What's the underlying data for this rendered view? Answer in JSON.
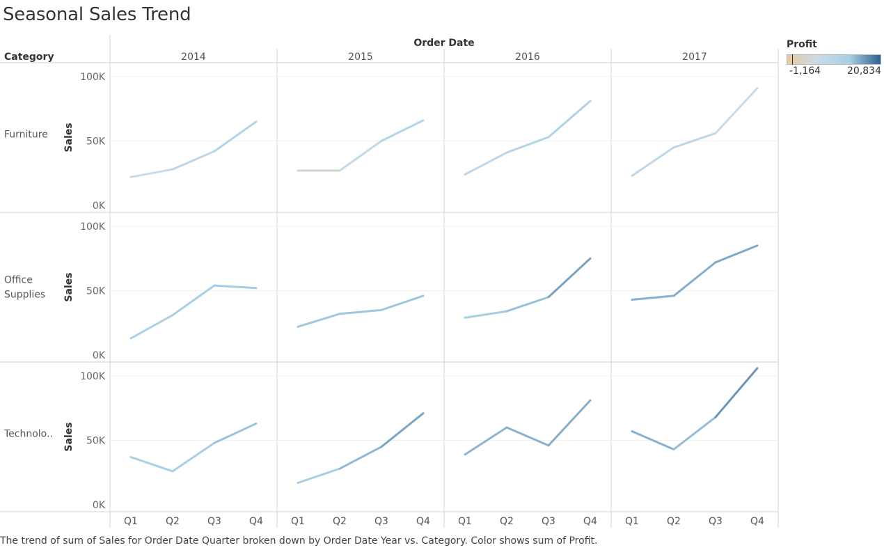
{
  "title": "Seasonal Sales Trend",
  "caption": "The trend of sum of Sales for Order Date Quarter broken down by Order Date Year vs. Category.  Color shows sum of Profit.",
  "legend": {
    "title": "Profit",
    "min_label": "-1,164",
    "max_label": "20,834",
    "min": -1164,
    "max": 20834,
    "colors": [
      "#e6c9a0",
      "#c9dce8",
      "#a8cfe4",
      "#2f5f8f"
    ]
  },
  "chart_data": {
    "type": "line",
    "column_header": "Order Date",
    "row_header": "Category",
    "columns": [
      "2014",
      "2015",
      "2016",
      "2017"
    ],
    "rows": [
      "Furniture",
      "Office Supplies",
      "Technolo.."
    ],
    "x_labels": [
      "Q1",
      "Q2",
      "Q3",
      "Q4"
    ],
    "ylabel": "Sales",
    "y_ticks": [
      0,
      50000,
      100000
    ],
    "y_tick_labels": [
      "0K",
      "50K",
      "100K"
    ],
    "ylim": [
      0,
      100000
    ],
    "grid": true,
    "series": [
      {
        "row": "Furniture",
        "year": "2014",
        "values": [
          22000,
          28000,
          42000,
          65000
        ],
        "profit": [
          -400,
          1200,
          3000,
          4000
        ]
      },
      {
        "row": "Furniture",
        "year": "2015",
        "values": [
          27000,
          27000,
          50000,
          66000
        ],
        "profit": [
          -1164,
          200,
          2000,
          4000
        ]
      },
      {
        "row": "Furniture",
        "year": "2016",
        "values": [
          24000,
          41000,
          53000,
          81000
        ],
        "profit": [
          1000,
          3000,
          3500,
          4500
        ]
      },
      {
        "row": "Furniture",
        "year": "2017",
        "values": [
          23000,
          45000,
          56000,
          91000
        ],
        "profit": [
          1000,
          2500,
          1500,
          -300
        ]
      },
      {
        "row": "Office Supplies",
        "year": "2014",
        "values": [
          13000,
          31000,
          54000,
          52000
        ],
        "profit": [
          4500,
          5000,
          5500,
          5500
        ]
      },
      {
        "row": "Office Supplies",
        "year": "2015",
        "values": [
          22000,
          32000,
          35000,
          46000
        ],
        "profit": [
          6000,
          6500,
          6500,
          6500
        ]
      },
      {
        "row": "Office Supplies",
        "year": "2016",
        "values": [
          29000,
          34000,
          45000,
          75000
        ],
        "profit": [
          5000,
          5500,
          9000,
          14000
        ]
      },
      {
        "row": "Office Supplies",
        "year": "2017",
        "values": [
          43000,
          46000,
          72000,
          85000
        ],
        "profit": [
          9000,
          9500,
          10500,
          10500
        ]
      },
      {
        "row": "Technolo..",
        "year": "2014",
        "values": [
          37000,
          26000,
          48000,
          63000
        ],
        "profit": [
          5000,
          4500,
          6000,
          8000
        ]
      },
      {
        "row": "Technolo..",
        "year": "2015",
        "values": [
          17000,
          28000,
          45000,
          71000
        ],
        "profit": [
          4000,
          6500,
          10000,
          12000
        ]
      },
      {
        "row": "Technolo..",
        "year": "2016",
        "values": [
          39000,
          60000,
          46000,
          81000
        ],
        "profit": [
          8000,
          9500,
          9000,
          10500
        ]
      },
      {
        "row": "Technolo..",
        "year": "2017",
        "values": [
          57000,
          43000,
          68000,
          106000
        ],
        "profit": [
          14000,
          5000,
          10500,
          16000
        ]
      }
    ]
  }
}
